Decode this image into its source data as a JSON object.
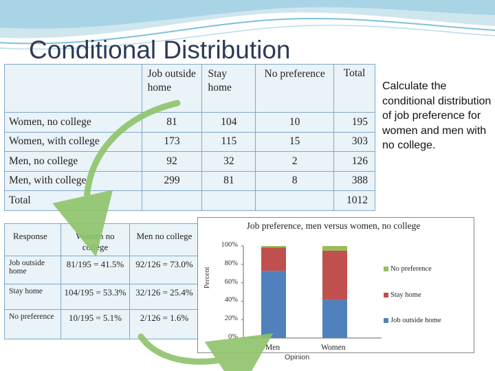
{
  "slide": {
    "title": "Conditional Distribution",
    "side_note": "Calculate the conditional distribution of job preference for women and men with no college."
  },
  "main_table": {
    "headers": [
      "Job outside home",
      "Stay home",
      "No preference",
      "Total"
    ],
    "rows": [
      {
        "label": "Women, no college",
        "values": [
          "81",
          "104",
          "10",
          "195"
        ]
      },
      {
        "label": "Women, with college",
        "values": [
          "173",
          "115",
          "15",
          "303"
        ]
      },
      {
        "label": "Men, no college",
        "values": [
          "92",
          "32",
          "2",
          "126"
        ]
      },
      {
        "label": "Men, with college",
        "values": [
          "299",
          "81",
          "8",
          "388"
        ]
      },
      {
        "label": "Total",
        "values": [
          "",
          "",
          "",
          "1012"
        ]
      }
    ]
  },
  "cond_table": {
    "headers": [
      "Response",
      "Women no college",
      "Men no college"
    ],
    "rows": [
      {
        "label": "Job outside home",
        "women": "81/195 = 41.5%",
        "men": "92/126 = 73.0%"
      },
      {
        "label": "Stay home",
        "women": "104/195 = 53.3%",
        "men": "32/126 = 25.4%"
      },
      {
        "label": "No preference",
        "women": "10/195 = 5.1%",
        "men": "2/126 = 1.6%"
      }
    ]
  },
  "chart_data": {
    "type": "bar",
    "stacked": true,
    "title": "Job preference, men versus women, no college",
    "xlabel": "Opinion",
    "ylabel": "Percent",
    "categories": [
      "Men",
      "Women"
    ],
    "ylim": [
      0,
      100
    ],
    "yticks": [
      "0%",
      "20%",
      "40%",
      "60%",
      "80%",
      "100%"
    ],
    "legend_position": "right",
    "series": [
      {
        "name": "Job outside home",
        "values": [
          73.0,
          41.5
        ],
        "color": "#4f81bd"
      },
      {
        "name": "Stay home",
        "values": [
          25.4,
          53.3
        ],
        "color": "#c0504d"
      },
      {
        "name": "No preference",
        "values": [
          1.6,
          5.1
        ],
        "color": "#9bbb59"
      }
    ]
  }
}
